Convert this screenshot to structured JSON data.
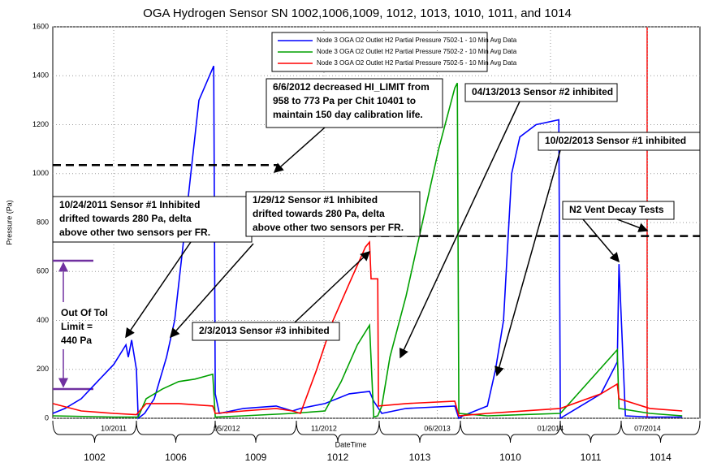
{
  "chart_data": {
    "type": "line",
    "title": "OGA Hydrogen Sensor SN 1002,1006,1009, 1012, 1013, 1010, 1011, and 1014",
    "y_label": "Pressure (Pa)",
    "x_label": "DateTime",
    "xlim": [
      2011.436,
      2014.77
    ],
    "ylim": [
      0,
      1600
    ],
    "yticks": [
      0,
      200,
      400,
      600,
      800,
      1000,
      1200,
      1400,
      1600
    ],
    "xticks": [
      {
        "value": 2011.75,
        "label": "10/2011"
      },
      {
        "value": 2012.333,
        "label": "05/2012"
      },
      {
        "value": 2012.833,
        "label": "11/2012"
      },
      {
        "value": 2013.417,
        "label": "06/2013"
      },
      {
        "value": 2014.0,
        "label": "01/2014"
      },
      {
        "value": 2014.5,
        "label": "07/2014"
      }
    ],
    "grid": true,
    "legend": "top-center",
    "series": [
      {
        "name": "Node 3 OGA O2 Outlet H2 Partial Pressure 7502-1 - 10 Min Avg Data",
        "color": "#0000ff",
        "x": [
          2011.436,
          2011.499,
          2011.583,
          2011.666,
          2011.75,
          2011.813,
          2011.825,
          2011.842,
          2011.867,
          2011.876,
          2011.909,
          2011.959,
          2012.022,
          2012.064,
          2012.106,
          2012.147,
          2012.189,
          2012.265,
          2012.273,
          2012.294,
          2012.419,
          2012.587,
          2012.671,
          2012.712,
          2012.838,
          2012.963,
          2013.068,
          2013.089,
          2013.131,
          2013.256,
          2013.507,
          2013.528,
          2013.549,
          2013.675,
          2013.717,
          2013.758,
          2013.8,
          2013.842,
          2013.926,
          2014.043,
          2014.051,
          2014.072,
          2014.26,
          2014.344,
          2014.353,
          2014.386,
          2014.512,
          2014.679
        ],
        "values": [
          20,
          40,
          80,
          150,
          220,
          300,
          250,
          320,
          200,
          0,
          20,
          80,
          250,
          400,
          700,
          1000,
          1300,
          1440,
          100,
          20,
          40,
          50,
          30,
          40,
          60,
          100,
          110,
          70,
          20,
          40,
          50,
          0,
          10,
          50,
          200,
          400,
          1000,
          1150,
          1200,
          1220,
          0,
          10,
          100,
          230,
          630,
          10,
          5,
          5
        ]
      },
      {
        "name": "Node 3 OGA O2 Outlet H2 Partial Pressure 7502-2 - 10 Min Avg Data",
        "color": "#00a000",
        "x": [
          2011.436,
          2011.75,
          2011.876,
          2011.917,
          2012.001,
          2012.085,
          2012.168,
          2012.26,
          2012.273,
          2012.419,
          2012.671,
          2012.838,
          2012.922,
          2013.005,
          2013.068,
          2013.089,
          2013.11,
          2013.131,
          2013.173,
          2013.256,
          2013.34,
          2013.424,
          2013.507,
          2013.52,
          2013.528,
          2013.675,
          2014.051,
          2014.344,
          2014.353,
          2014.512,
          2014.679
        ],
        "values": [
          10,
          5,
          5,
          80,
          120,
          150,
          160,
          180,
          5,
          10,
          20,
          30,
          150,
          300,
          380,
          5,
          10,
          50,
          250,
          500,
          800,
          1100,
          1350,
          1370,
          20,
          10,
          20,
          280,
          40,
          20,
          10
        ]
      },
      {
        "name": "Node 3 OGA O2 Outlet H2 Partial Pressure 7502-5 - 10 Min Avg Data",
        "color": "#ff0000",
        "x": [
          2011.436,
          2011.583,
          2011.75,
          2011.867,
          2011.917,
          2012.085,
          2012.26,
          2012.273,
          2012.419,
          2012.587,
          2012.671,
          2012.712,
          2012.796,
          2012.88,
          2012.963,
          2013.047,
          2013.068,
          2013.076,
          2013.11,
          2013.114,
          2013.256,
          2013.507,
          2013.528,
          2013.675,
          2014.051,
          2014.26,
          2014.344,
          2014.353,
          2014.512,
          2014.679
        ],
        "values": [
          60,
          30,
          20,
          15,
          60,
          60,
          50,
          20,
          30,
          40,
          30,
          20,
          200,
          400,
          550,
          700,
          720,
          570,
          570,
          50,
          60,
          70,
          10,
          20,
          40,
          100,
          140,
          80,
          40,
          30
        ]
      }
    ],
    "reference_lines": [
      {
        "value": 1035,
        "x": [
          2011.436,
          2012.6
        ]
      },
      {
        "value": 745,
        "x": [
          2013.06,
          2014.77
        ]
      }
    ],
    "annotations": [
      {
        "text": [
          "6/6/2012 decreased HI_LIMIT from",
          "958 to 773 Pa per Chit 10401 to",
          "maintain 150 day calibration life."
        ]
      },
      {
        "text": [
          "04/13/2013 Sensor #2 inhibited"
        ]
      },
      {
        "text": [
          "10/02/2013 Sensor #1 inhibited"
        ]
      },
      {
        "text": [
          "N2 Vent Decay Tests"
        ]
      },
      {
        "text": [
          "10/24/2011 Sensor #1 Inhibited",
          "drifted towards 280 Pa, delta",
          "above other two sensors per FR."
        ]
      },
      {
        "text": [
          "1/29/12 Sensor #1 Inhibited",
          "drifted towards 280 Pa, delta",
          "above other two sensors per FR."
        ]
      },
      {
        "text": [
          "2/3/2013 Sensor #3 inhibited"
        ]
      },
      {
        "text": [
          "Out Of Tol",
          "Limit =",
          "440 Pa"
        ]
      }
    ],
    "sensors": [
      "1002",
      "1006",
      "1009",
      "1012",
      "1013",
      "1010",
      "1011",
      "1014"
    ]
  }
}
